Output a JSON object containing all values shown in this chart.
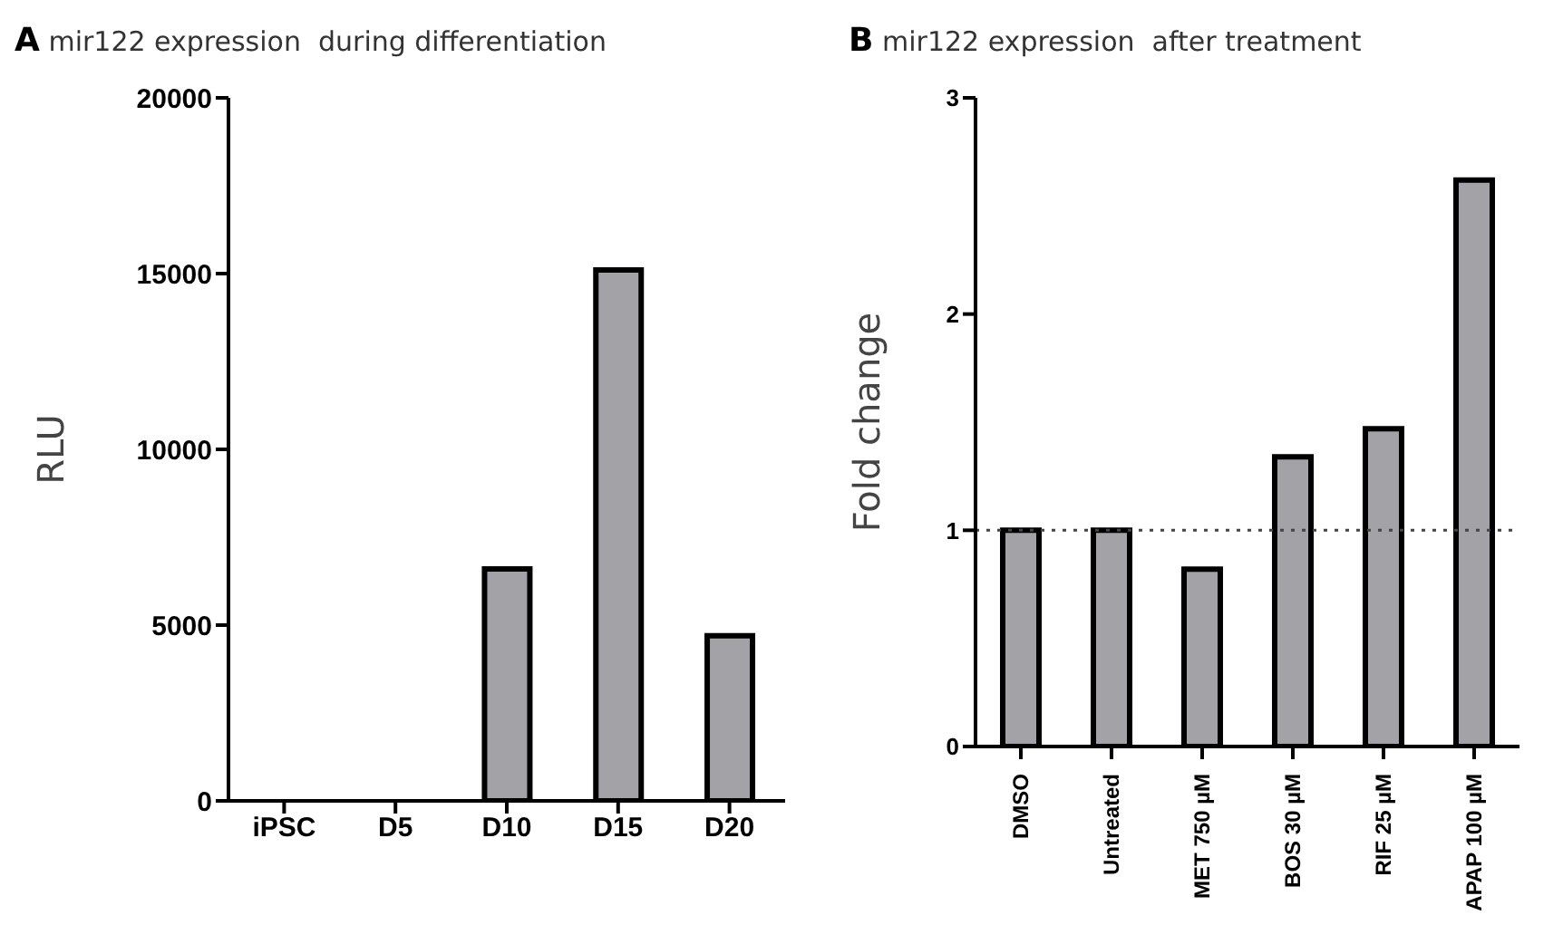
{
  "chart_data": [
    {
      "type": "bar",
      "title": "A mir122 expression  during differentiation",
      "ylabel": "RLU",
      "categories": [
        "iPSC",
        "D5",
        "D10",
        "D15",
        "D20"
      ],
      "values": [
        0,
        0,
        6600,
        15100,
        4700
      ],
      "color": "#a3a3a7",
      "ylim": [
        0,
        20000
      ],
      "yticks": [
        0,
        5000,
        10000,
        15000,
        20000
      ],
      "grid": false,
      "legend": false
    },
    {
      "type": "bar",
      "title": "B mir122 expression  after treatment",
      "ylabel": "Fold change",
      "categories": [
        "DMSO",
        "Untreated",
        "MET 750 µM",
        "BOS 30 µM",
        "RIF 25 µM",
        "APAP 100 µM"
      ],
      "values": [
        1,
        1,
        0.82,
        1.34,
        1.47,
        2.62
      ],
      "color": "#a3a3a7",
      "ylim": [
        0,
        3
      ],
      "yticks": [
        0,
        1,
        2,
        3
      ],
      "grid": false,
      "legend": false,
      "ref_lines": [
        {
          "axis": "y",
          "value": 1,
          "label": null,
          "line_style": "dotted"
        }
      ]
    }
  ]
}
